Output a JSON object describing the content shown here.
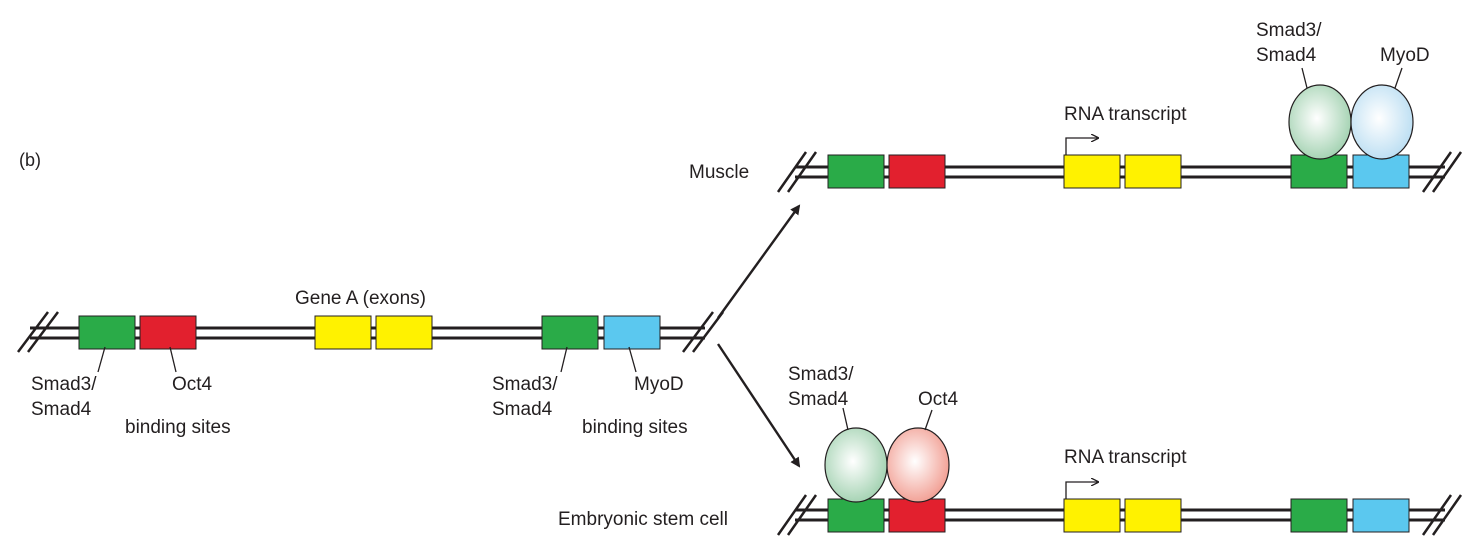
{
  "panel_label": "(b)",
  "colors": {
    "smad_site": "#2aab48",
    "oct4_site": "#e2202e",
    "exon": "#fff200",
    "myod_site": "#5bc8ef",
    "smad_protein": "#a8d5b5",
    "oct4_protein": "#f4a79c",
    "myod_protein": "#c5e4f5",
    "dna": "#231f20"
  },
  "left_strand": {
    "gene_label": "Gene A (exons)",
    "left_site_pair": {
      "smad_line1": "Smad3/",
      "smad_line2": "Smad4",
      "oct4": "Oct4",
      "caption": "binding sites"
    },
    "right_site_pair": {
      "smad_line1": "Smad3/",
      "smad_line2": "Smad4",
      "myod": "MyoD",
      "caption": "binding sites"
    }
  },
  "muscle_strand": {
    "label": "Muscle",
    "transcript_label": "RNA transcript",
    "protein_smad_line1": "Smad3/",
    "protein_smad_line2": "Smad4",
    "protein_myod": "MyoD"
  },
  "esc_strand": {
    "label": "Embryonic stem cell",
    "transcript_label": "RNA transcript",
    "protein_smad_line1": "Smad3/",
    "protein_smad_line2": "Smad4",
    "protein_oct4": "Oct4"
  }
}
